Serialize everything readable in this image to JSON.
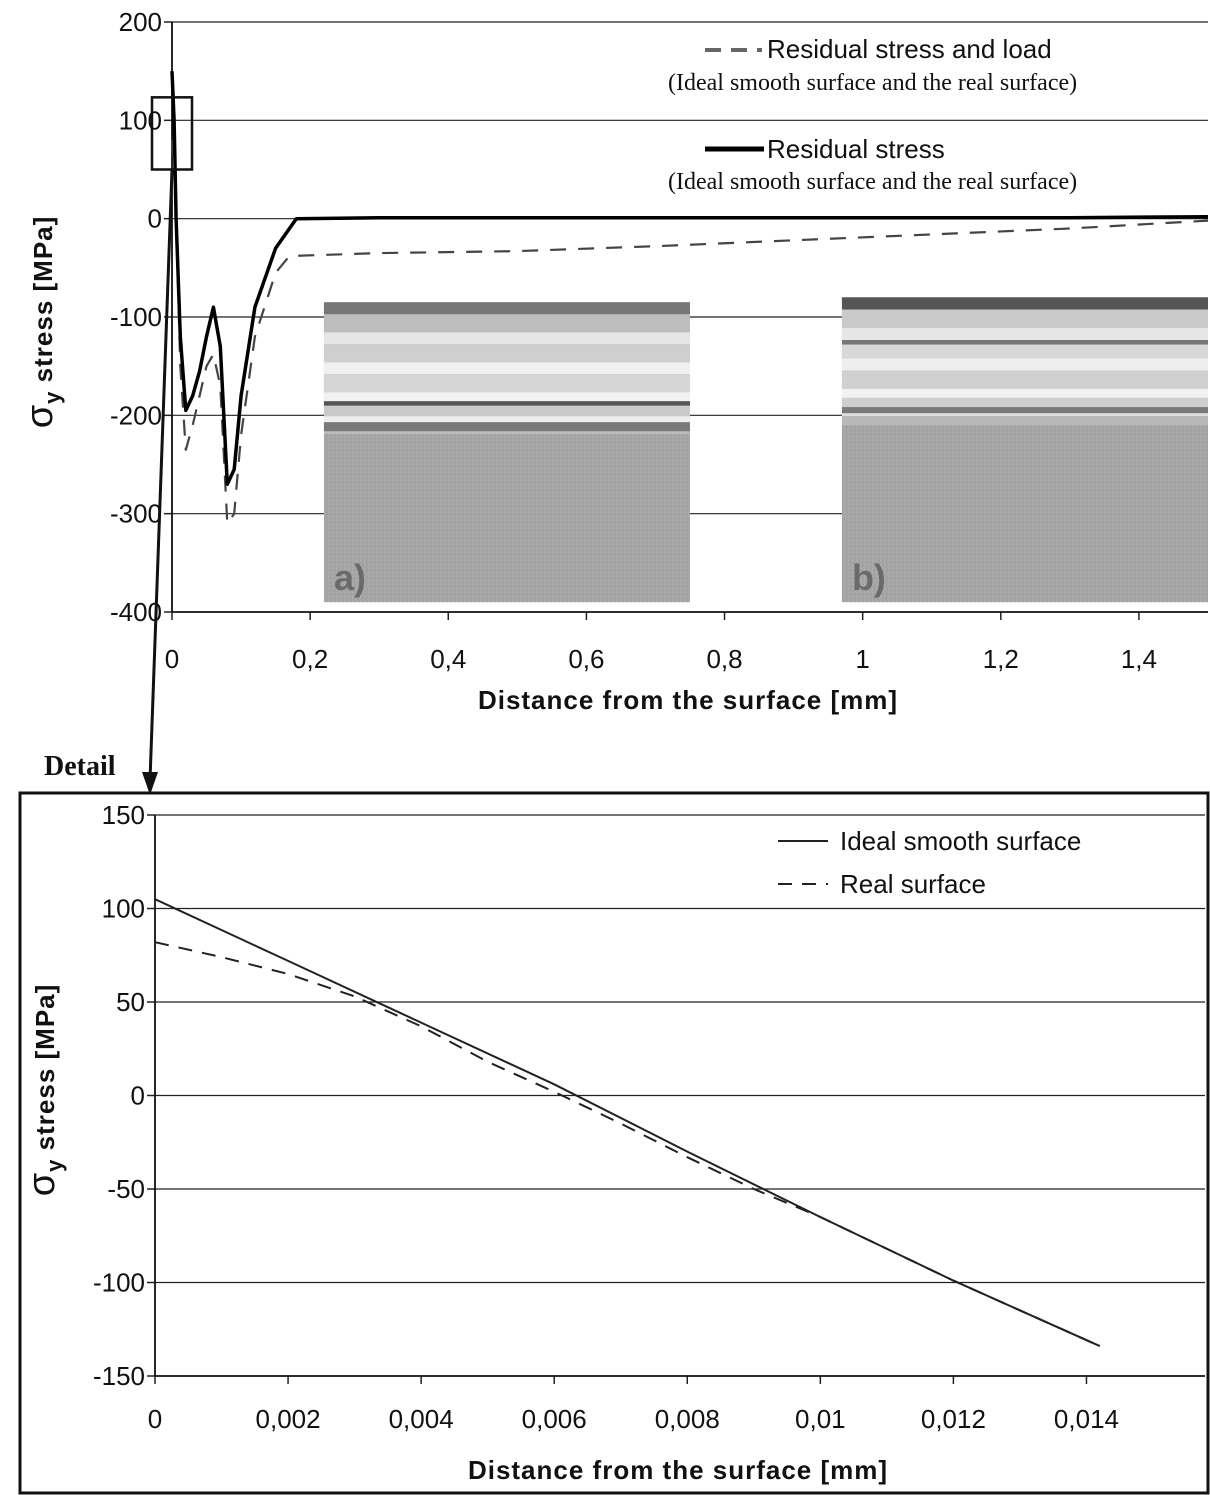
{
  "chart_data": [
    {
      "type": "line",
      "title": "",
      "xlabel": "Distance from the surface [mm]",
      "ylabel": "σy stress [MPa]",
      "ylabel_symbol": "σ",
      "ylabel_sub": "y",
      "ylabel_rest": " stress [MPa]",
      "xlim": [
        0,
        1.5
      ],
      "ylim": [
        -400,
        200
      ],
      "grid": "horizontal",
      "legend_position": "top-right",
      "x_tick_labels": [
        "0",
        "0,2",
        "0,4",
        "0,6",
        "0,8",
        "1",
        "1,2",
        "1,4"
      ],
      "y_tick_labels": [
        "200",
        "100",
        "0",
        "-100",
        "-200",
        "-300",
        "-400"
      ],
      "series": [
        {
          "name": "Residual stress and load",
          "sub_label": "(Ideal smooth surface and the real surface)",
          "style": "dashed",
          "color": "#444444",
          "x": [
            0,
            0.003,
            0.006,
            0.012,
            0.02,
            0.03,
            0.04,
            0.05,
            0.06,
            0.07,
            0.08,
            0.09,
            0.1,
            0.12,
            0.15,
            0.17,
            0.3,
            0.5,
            0.7,
            0.9,
            1.1,
            1.3,
            1.5
          ],
          "y": [
            80,
            50,
            0,
            -150,
            -235,
            -210,
            -180,
            -150,
            -138,
            -170,
            -310,
            -300,
            -220,
            -120,
            -55,
            -38,
            -35,
            -33,
            -28,
            -22,
            -16,
            -10,
            -2
          ]
        },
        {
          "name": "Residual stress",
          "sub_label": "(Ideal smooth surface and the real surface)",
          "style": "solid",
          "color": "#000000",
          "x": [
            0,
            0.003,
            0.006,
            0.012,
            0.02,
            0.03,
            0.04,
            0.05,
            0.06,
            0.07,
            0.08,
            0.09,
            0.1,
            0.12,
            0.15,
            0.18,
            0.3,
            0.5,
            0.7,
            0.9,
            1.1,
            1.3,
            1.5
          ],
          "y": [
            150,
            100,
            0,
            -120,
            -195,
            -180,
            -155,
            -120,
            -90,
            -130,
            -270,
            -255,
            -180,
            -90,
            -30,
            0,
            1,
            1,
            1,
            1,
            1,
            1,
            2
          ]
        }
      ],
      "detail_box": {
        "x": [
          0,
          0.03
        ],
        "y": [
          50,
          100
        ]
      },
      "insets": [
        {
          "label": "a)",
          "x_range": [
            0.22,
            0.75
          ],
          "y_range": [
            -390,
            -85
          ]
        },
        {
          "label": "b)",
          "x_range": [
            0.97,
            1.5
          ],
          "y_range": [
            -390,
            -80
          ]
        }
      ]
    },
    {
      "type": "line",
      "title": "",
      "xlabel": "Distance from the surface [mm]",
      "ylabel": "σy stress [MPa]",
      "ylabel_symbol": "σ",
      "ylabel_sub": "y",
      "ylabel_rest": " stress [MPa]",
      "xlim": [
        0,
        0.015
      ],
      "ylim": [
        -150,
        150
      ],
      "grid": "horizontal",
      "legend_position": "top-right",
      "x_tick_labels": [
        "0",
        "0,002",
        "0,004",
        "0,006",
        "0,008",
        "0,01",
        "0,012",
        "0,014"
      ],
      "y_tick_labels": [
        "150",
        "100",
        "50",
        "0",
        "-50",
        "-100",
        "-150"
      ],
      "series": [
        {
          "name": "Ideal smooth surface",
          "style": "solid",
          "color": "#222222",
          "x": [
            0,
            0.002,
            0.004,
            0.006,
            0.008,
            0.01,
            0.012,
            0.0142
          ],
          "y": [
            105,
            72,
            39,
            6,
            -30,
            -65,
            -99,
            -134
          ]
        },
        {
          "name": "Real surface",
          "style": "dashed",
          "color": "#222222",
          "x": [
            0,
            0.001,
            0.002,
            0.003,
            0.004,
            0.005,
            0.006,
            0.007,
            0.008,
            0.009,
            0.01,
            0.012,
            0.0142
          ],
          "y": [
            82,
            74,
            65,
            53,
            37,
            18,
            2,
            -15,
            -33,
            -50,
            -65,
            -99,
            -134
          ]
        }
      ]
    }
  ],
  "detail_label": "Detail",
  "detail_arrow_color": "#111111"
}
